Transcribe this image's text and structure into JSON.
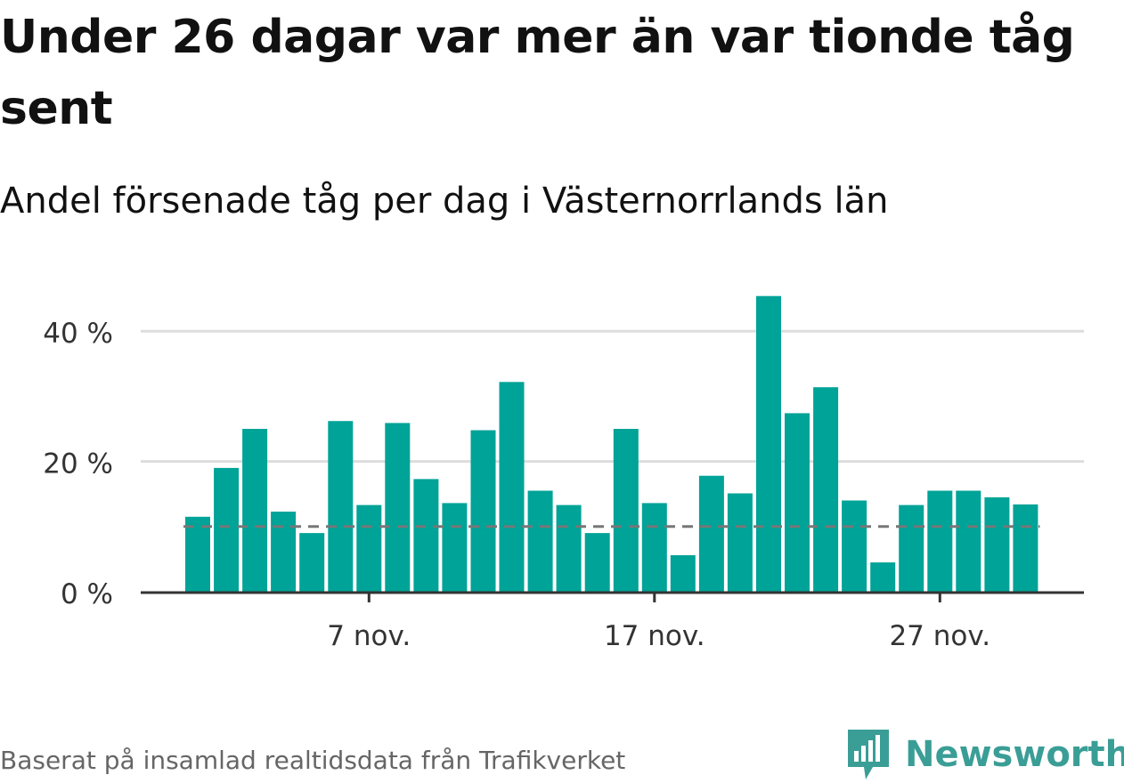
{
  "title": "Under 26 dagar var mer än var tionde tåg sent",
  "subtitle": "Andel försenade tåg per dag i Västernorrlands län",
  "footer": {
    "source": "Baserat på insamlad realtidsdata från Trafikverket",
    "brand": "Newsworthy",
    "brand_icon": "newsworthy-logo-icon"
  },
  "colors": {
    "bar": "#00a397",
    "reference_line": "#777777",
    "grid": "#dddddd",
    "axis": "#333333",
    "brand": "#3a9e96"
  },
  "chart_data": {
    "type": "bar",
    "x": [
      "2023-11-01",
      "2023-11-02",
      "2023-11-03",
      "2023-11-04",
      "2023-11-05",
      "2023-11-06",
      "2023-11-07",
      "2023-11-08",
      "2023-11-09",
      "2023-11-10",
      "2023-11-11",
      "2023-11-12",
      "2023-11-13",
      "2023-11-14",
      "2023-11-15",
      "2023-11-16",
      "2023-11-17",
      "2023-11-18",
      "2023-11-19",
      "2023-11-20",
      "2023-11-21",
      "2023-11-22",
      "2023-11-23",
      "2023-11-24",
      "2023-11-25",
      "2023-11-26",
      "2023-11-27",
      "2023-11-28",
      "2023-11-29",
      "2023-11-30"
    ],
    "values": [
      11.5,
      19,
      25,
      12.3,
      9,
      26.2,
      13.3,
      25.9,
      17.3,
      13.6,
      24.8,
      32.2,
      15.5,
      13.3,
      9,
      25,
      13.6,
      5.6,
      17.8,
      15.1,
      45.4,
      27.4,
      31.4,
      14,
      4.5,
      13.3,
      15.5,
      15.5,
      14.5,
      13.4
    ],
    "reference_line": 10,
    "ylim": [
      0,
      47
    ],
    "yticks": [
      0,
      20,
      40
    ],
    "ytick_labels": [
      "0 %",
      "20 %",
      "40 %"
    ],
    "xtick_labels": [
      {
        "x": "2023-11-07",
        "label": "7 nov."
      },
      {
        "x": "2023-11-17",
        "label": "17 nov."
      },
      {
        "x": "2023-11-27",
        "label": "27 nov."
      }
    ],
    "grid": true,
    "legend": "none"
  }
}
